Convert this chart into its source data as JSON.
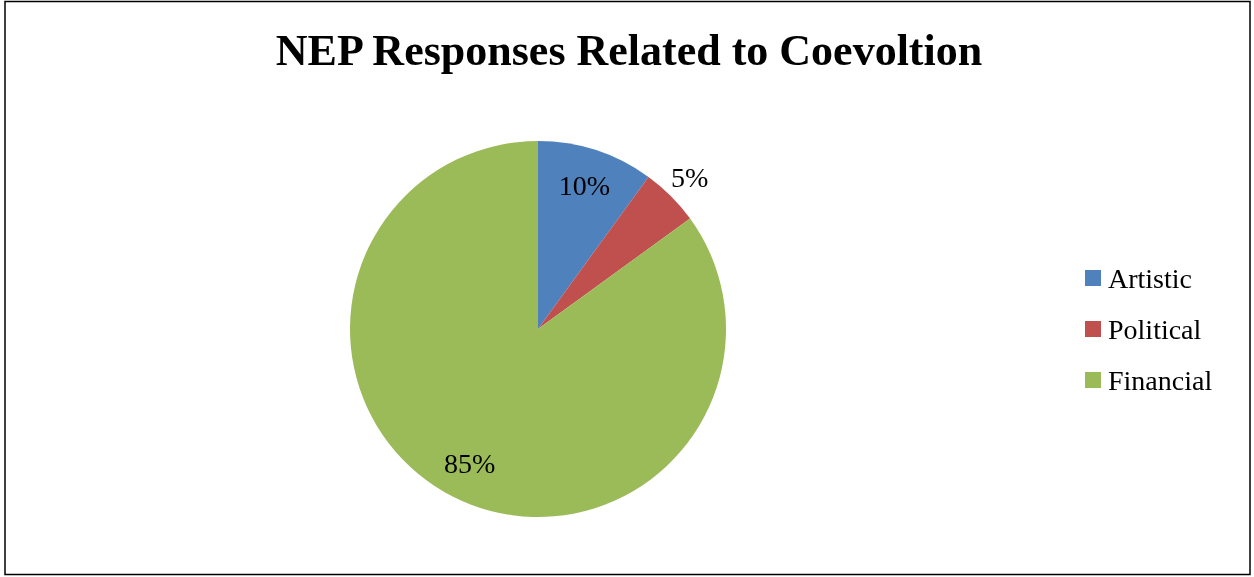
{
  "chart_data": {
    "type": "pie",
    "title": "NEP Responses Related to Coevoltion",
    "categories": [
      "Artistic",
      "Political",
      "Financial"
    ],
    "values": [
      10,
      5,
      85
    ],
    "colors": [
      "#4f81bd",
      "#c0504d",
      "#9bbb59"
    ],
    "value_labels": [
      "10%",
      "5%",
      "85%"
    ],
    "legend": "right"
  }
}
